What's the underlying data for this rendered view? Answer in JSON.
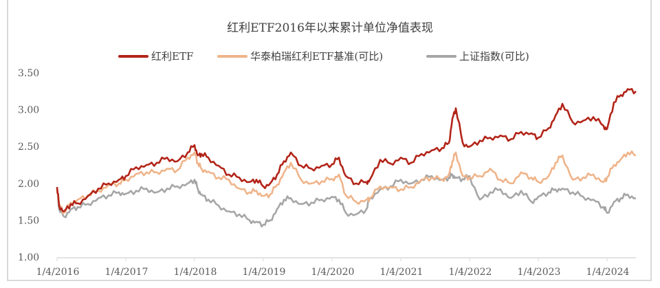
{
  "title": "红利ETF2016年以来累计单位净值表现",
  "legend": [
    {
      "label": "红利ETF",
      "color": "#b22418"
    },
    {
      "label": "华泰柏瑞红利ETF基准(可比)",
      "color": "#efb48a"
    },
    {
      "label": "上证指数(可比)",
      "color": "#a6a6a6"
    }
  ],
  "chart_data": {
    "type": "line",
    "title": "红利ETF2016年以来累计单位净值表现",
    "xlabel": "",
    "ylabel": "",
    "ylim": [
      1.0,
      3.5
    ],
    "yticks": [
      "3.50",
      "3.00",
      "2.50",
      "2.00",
      "1.50",
      "1.00"
    ],
    "xticks": [
      "1/4/2016",
      "1/4/2017",
      "1/4/2018",
      "1/4/2019",
      "1/4/2020",
      "1/4/2021",
      "1/4/2022",
      "1/4/2023",
      "1/4/2024"
    ],
    "grid": false,
    "legend_position": "top",
    "x": [
      2016.0,
      2016.03,
      2016.1,
      2016.2,
      2016.3,
      2016.45,
      2016.6,
      2016.75,
      2016.9,
      2017.0,
      2017.15,
      2017.3,
      2017.45,
      2017.6,
      2017.75,
      2017.9,
      2018.0,
      2018.05,
      2018.1,
      2018.2,
      2018.35,
      2018.5,
      2018.65,
      2018.8,
      2018.9,
      2019.0,
      2019.1,
      2019.2,
      2019.3,
      2019.4,
      2019.55,
      2019.7,
      2019.85,
      2020.0,
      2020.1,
      2020.2,
      2020.35,
      2020.5,
      2020.55,
      2020.7,
      2020.85,
      2021.0,
      2021.15,
      2021.3,
      2021.45,
      2021.6,
      2021.7,
      2021.75,
      2021.8,
      2021.9,
      2022.0,
      2022.15,
      2022.3,
      2022.45,
      2022.6,
      2022.75,
      2022.9,
      2023.0,
      2023.15,
      2023.25,
      2023.35,
      2023.5,
      2023.65,
      2023.8,
      2023.95,
      2024.0,
      2024.1,
      2024.2,
      2024.3,
      2024.42
    ],
    "series": [
      {
        "name": "红利ETF",
        "values": [
          1.95,
          1.7,
          1.62,
          1.72,
          1.73,
          1.83,
          1.93,
          2.0,
          2.05,
          2.1,
          2.22,
          2.25,
          2.28,
          2.35,
          2.3,
          2.42,
          2.52,
          2.38,
          2.4,
          2.35,
          2.24,
          2.12,
          2.08,
          2.02,
          2.05,
          1.96,
          2.0,
          2.12,
          2.3,
          2.42,
          2.24,
          2.2,
          2.24,
          2.26,
          2.35,
          2.1,
          2.0,
          2.02,
          2.05,
          2.32,
          2.27,
          2.35,
          2.28,
          2.4,
          2.45,
          2.48,
          2.55,
          2.88,
          3.02,
          2.55,
          2.5,
          2.58,
          2.62,
          2.65,
          2.6,
          2.7,
          2.68,
          2.62,
          2.75,
          2.92,
          3.08,
          2.83,
          2.85,
          2.9,
          2.78,
          2.74,
          3.1,
          3.2,
          3.28,
          3.25
        ]
      },
      {
        "name": "华泰柏瑞红利ETF基准(可比)",
        "values": [
          1.95,
          1.72,
          1.6,
          1.74,
          1.78,
          1.84,
          1.9,
          1.98,
          2.0,
          2.05,
          2.13,
          2.15,
          2.15,
          2.2,
          2.18,
          2.35,
          2.42,
          2.27,
          2.2,
          2.16,
          2.08,
          2.05,
          1.93,
          1.88,
          1.9,
          1.83,
          1.85,
          1.98,
          2.15,
          2.28,
          2.05,
          2.0,
          2.03,
          2.06,
          2.12,
          1.84,
          1.75,
          1.78,
          1.8,
          1.96,
          1.95,
          1.92,
          1.95,
          2.05,
          2.08,
          2.05,
          2.12,
          2.3,
          2.42,
          2.1,
          2.08,
          2.1,
          2.2,
          2.05,
          2.0,
          2.15,
          2.08,
          2.02,
          2.1,
          2.28,
          2.38,
          2.05,
          2.08,
          2.12,
          2.02,
          2.08,
          2.25,
          2.33,
          2.42,
          2.38
        ]
      },
      {
        "name": "上证指数(可比)",
        "values": [
          1.95,
          1.65,
          1.55,
          1.65,
          1.68,
          1.72,
          1.8,
          1.84,
          1.88,
          1.86,
          1.9,
          1.93,
          1.88,
          1.93,
          1.96,
          2.0,
          2.05,
          1.92,
          1.85,
          1.78,
          1.7,
          1.62,
          1.58,
          1.5,
          1.48,
          1.44,
          1.5,
          1.65,
          1.78,
          1.8,
          1.72,
          1.74,
          1.78,
          1.82,
          1.78,
          1.6,
          1.58,
          1.65,
          1.8,
          1.92,
          1.96,
          2.05,
          2.0,
          2.05,
          2.1,
          2.05,
          2.08,
          2.12,
          2.08,
          2.06,
          2.1,
          1.78,
          1.88,
          1.92,
          1.8,
          1.9,
          1.75,
          1.82,
          1.88,
          1.92,
          1.93,
          1.88,
          1.82,
          1.78,
          1.68,
          1.6,
          1.75,
          1.8,
          1.85,
          1.8
        ]
      }
    ]
  }
}
